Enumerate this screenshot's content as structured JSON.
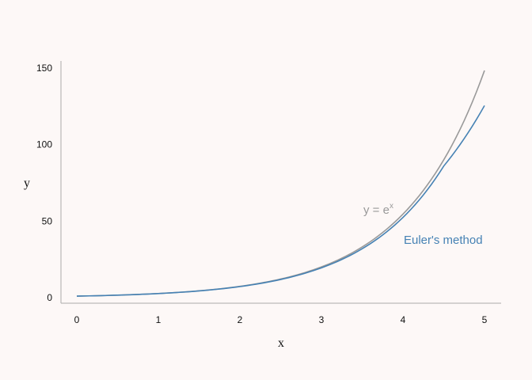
{
  "chart_data": {
    "type": "line",
    "title": "",
    "xlabel": "x",
    "ylabel": "y",
    "xlim": [
      0,
      5
    ],
    "ylim": [
      0,
      150
    ],
    "xticks": [
      0,
      1,
      2,
      3,
      4,
      5
    ],
    "yticks": [
      0,
      50,
      100,
      150
    ],
    "grid": false,
    "x": [
      0,
      0.5,
      1,
      1.5,
      2,
      2.5,
      3,
      3.5,
      4,
      4.5,
      5
    ],
    "series": [
      {
        "name": "y = e",
        "superscript": "x",
        "color": "#999999",
        "y": [
          1,
          1.65,
          2.72,
          4.48,
          7.39,
          12.18,
          20.09,
          33.12,
          54.6,
          90.02,
          148.41
        ]
      },
      {
        "name": "Euler's method",
        "color": "#4682b4",
        "y": [
          1,
          1.64,
          2.69,
          4.41,
          7.24,
          11.87,
          19.48,
          31.95,
          52.41,
          85.97,
          125.5
        ]
      }
    ]
  },
  "colors": {
    "background": "#fdf8f7",
    "axis": "#999999",
    "text": "#111111"
  }
}
